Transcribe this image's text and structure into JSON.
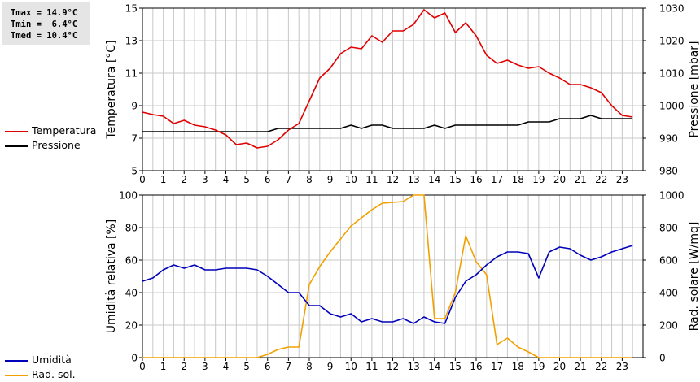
{
  "stats": {
    "tmax": "Tmax = 14.9°C",
    "tmin": "Tmin =  6.4°C",
    "tmed": "Tmed = 10.4°C"
  },
  "colors": {
    "temperature": "#e00000",
    "pressure": "#000000",
    "humidity": "#0000bb",
    "radiation": "#f2a000",
    "grid": "#c8c8c8"
  },
  "chart_data": [
    {
      "type": "line",
      "x": [
        0,
        0.5,
        1,
        1.5,
        2,
        2.5,
        3,
        3.5,
        4,
        4.5,
        5,
        5.5,
        6,
        6.5,
        7,
        7.5,
        8,
        8.5,
        9,
        9.5,
        10,
        10.5,
        11,
        11.5,
        12,
        12.5,
        13,
        13.5,
        14,
        14.5,
        15,
        15.5,
        16,
        16.5,
        17,
        17.5,
        18,
        18.5,
        19,
        19.5,
        20,
        20.5,
        21,
        21.5,
        22,
        22.5,
        23,
        23.5
      ],
      "xlim": [
        0,
        24
      ],
      "xticks": [
        "0",
        "1",
        "2",
        "3",
        "4",
        "5",
        "6",
        "7",
        "8",
        "9",
        "10",
        "11",
        "12",
        "13",
        "14",
        "15",
        "16",
        "17",
        "18",
        "19",
        "20",
        "21",
        "22",
        "23"
      ],
      "ylabel": "Temperatura [°C]",
      "ylim": [
        5,
        15
      ],
      "yticks": [
        "5",
        "7",
        "9",
        "11",
        "13",
        "15"
      ],
      "ylabel_right": "Pressione [mbar]",
      "ylim_right": [
        980,
        1030
      ],
      "yticks_right": [
        "980",
        "990",
        "1000",
        "1010",
        "1020",
        "1030"
      ],
      "grid": true,
      "legend_position": "left",
      "series": [
        {
          "name": "Temperatura",
          "axis": "left",
          "color": "#e00000",
          "values": [
            8.6,
            8.45,
            8.35,
            7.9,
            8.1,
            7.8,
            7.7,
            7.5,
            7.2,
            6.6,
            6.7,
            6.4,
            6.5,
            6.9,
            7.5,
            7.9,
            9.3,
            10.7,
            11.3,
            12.2,
            12.6,
            12.5,
            13.3,
            12.9,
            13.6,
            13.6,
            14.0,
            14.9,
            14.4,
            14.7,
            13.5,
            14.1,
            13.3,
            12.1,
            11.6,
            11.8,
            11.5,
            11.3,
            11.4,
            11.0,
            10.7,
            10.3,
            10.3,
            10.1,
            9.8,
            9.0,
            8.4,
            8.3
          ]
        },
        {
          "name": "Pressione",
          "axis": "right",
          "color": "#000000",
          "values": [
            992,
            992,
            992,
            992,
            992,
            992,
            992,
            992,
            992,
            992,
            992,
            992,
            992,
            993,
            993,
            993,
            993,
            993,
            993,
            993,
            994,
            993,
            994,
            994,
            993,
            993,
            993,
            993,
            994,
            993,
            994,
            994,
            994,
            994,
            994,
            994,
            994,
            995,
            995,
            995,
            996,
            996,
            996,
            997,
            996,
            996,
            996,
            996
          ]
        }
      ]
    },
    {
      "type": "line",
      "x": [
        0,
        0.5,
        1,
        1.5,
        2,
        2.5,
        3,
        3.5,
        4,
        4.5,
        5,
        5.5,
        6,
        6.5,
        7,
        7.5,
        8,
        8.5,
        9,
        9.5,
        10,
        10.5,
        11,
        11.5,
        12,
        12.5,
        13,
        13.5,
        14,
        14.5,
        15,
        15.5,
        16,
        16.5,
        17,
        17.5,
        18,
        18.5,
        19,
        19.5,
        20,
        20.5,
        21,
        21.5,
        22,
        22.5,
        23,
        23.5
      ],
      "xlim": [
        0,
        24
      ],
      "xticks": [
        "0",
        "1",
        "2",
        "3",
        "4",
        "5",
        "6",
        "7",
        "8",
        "9",
        "10",
        "11",
        "12",
        "13",
        "14",
        "15",
        "16",
        "17",
        "18",
        "19",
        "20",
        "21",
        "22",
        "23"
      ],
      "ylabel": "Umidità relativa [%]",
      "ylim": [
        0,
        100
      ],
      "yticks": [
        "0",
        "20",
        "40",
        "60",
        "80",
        "100"
      ],
      "ylabel_right": "Rad. solare [W/mq]",
      "ylim_right": [
        0,
        1000
      ],
      "yticks_right": [
        "0",
        "200",
        "400",
        "600",
        "800",
        "1000"
      ],
      "grid": true,
      "legend_position": "left",
      "series": [
        {
          "name": "Umidità",
          "axis": "left",
          "color": "#0000bb",
          "values": [
            47,
            49,
            54,
            57,
            55,
            57,
            54,
            54,
            55,
            55,
            55,
            54,
            50,
            45,
            40,
            40,
            32,
            32,
            27,
            25,
            27,
            22,
            24,
            22,
            22,
            24,
            21,
            25,
            22,
            21,
            37,
            47,
            51,
            57,
            62,
            65,
            65,
            64,
            49,
            65,
            68,
            67,
            63,
            60,
            62,
            65,
            67,
            69
          ]
        },
        {
          "name": "Rad. sol.",
          "axis": "right",
          "color": "#f2a000",
          "values": [
            0,
            0,
            0,
            0,
            0,
            0,
            0,
            0,
            0,
            0,
            0,
            0,
            20,
            50,
            65,
            65,
            450,
            560,
            650,
            730,
            810,
            860,
            910,
            950,
            955,
            960,
            1000,
            1000,
            240,
            240,
            400,
            750,
            590,
            510,
            80,
            120,
            65,
            35,
            0,
            0,
            0,
            0,
            0,
            0,
            0,
            0,
            0,
            0
          ]
        }
      ]
    }
  ]
}
